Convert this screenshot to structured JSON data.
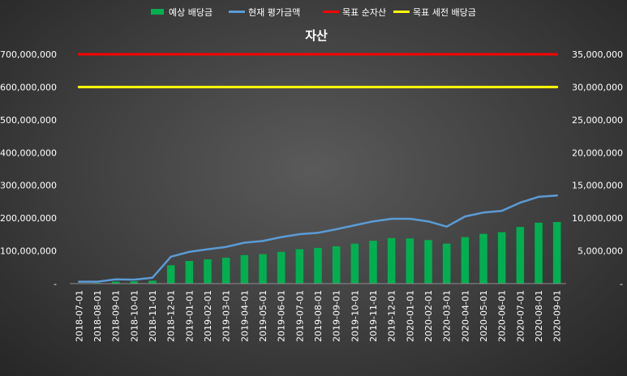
{
  "chart_data": {
    "type": "bar",
    "title": "자산",
    "categories": [
      "2018-07-01",
      "2018-08-01",
      "2018-09-01",
      "2018-10-01",
      "2018-11-01",
      "2018-12-01",
      "2019-01-01",
      "2019-02-01",
      "2019-03-01",
      "2019-04-01",
      "2019-05-01",
      "2019-06-01",
      "2019-07-01",
      "2019-08-01",
      "2019-09-01",
      "2019-10-01",
      "2019-11-01",
      "2019-12-01",
      "2020-01-01",
      "2020-02-01",
      "2020-03-01",
      "2020-04-01",
      "2020-05-01",
      "2020-06-01",
      "2020-07-01",
      "2020-08-01",
      "2020-09-01"
    ],
    "left_axis": {
      "ylim": [
        0,
        700000000
      ],
      "ticks": [
        0,
        100000000,
        200000000,
        300000000,
        400000000,
        500000000,
        600000000,
        700000000
      ],
      "tick_labels": [
        "-",
        "100,000,000",
        "200,000,000",
        "300,000,000",
        "400,000,000",
        "500,000,000",
        "600,000,000",
        "700,000,000"
      ]
    },
    "right_axis": {
      "ylim": [
        0,
        35000000
      ],
      "ticks": [
        0,
        5000000,
        10000000,
        15000000,
        20000000,
        25000000,
        30000000,
        35000000
      ],
      "tick_labels": [
        "-",
        "5,000,000",
        "10,000,000",
        "15,000,000",
        "20,000,000",
        "25,000,000",
        "30,000,000",
        "35,000,000"
      ]
    },
    "series": [
      {
        "name": "예상 배당금",
        "type": "bar",
        "axis": "right",
        "color": "#00b050",
        "values": [
          50000,
          100000,
          300000,
          350000,
          450000,
          2800000,
          3450000,
          3700000,
          3950000,
          4350000,
          4500000,
          4850000,
          5250000,
          5450000,
          5700000,
          6100000,
          6550000,
          6950000,
          6900000,
          6650000,
          6100000,
          7100000,
          7600000,
          7850000,
          8650000,
          9300000,
          9400000
        ]
      },
      {
        "name": "현재 평가금액",
        "type": "line",
        "axis": "left",
        "color": "#5b9bd5",
        "values": [
          6000000,
          6000000,
          13000000,
          12000000,
          18000000,
          82000000,
          97000000,
          105000000,
          112000000,
          125000000,
          130000000,
          142000000,
          151000000,
          155000000,
          166000000,
          178000000,
          190000000,
          198000000,
          198000000,
          190000000,
          174000000,
          205000000,
          217000000,
          222000000,
          247000000,
          265000000,
          269000000
        ]
      },
      {
        "name": "목표 순자산",
        "type": "line",
        "axis": "left",
        "color": "#ff0000",
        "values": [
          700000000,
          700000000,
          700000000,
          700000000,
          700000000,
          700000000,
          700000000,
          700000000,
          700000000,
          700000000,
          700000000,
          700000000,
          700000000,
          700000000,
          700000000,
          700000000,
          700000000,
          700000000,
          700000000,
          700000000,
          700000000,
          700000000,
          700000000,
          700000000,
          700000000,
          700000000,
          700000000
        ]
      },
      {
        "name": "목표 세전 배당금",
        "type": "line",
        "axis": "right",
        "color": "#ffff00",
        "values": [
          30000000,
          30000000,
          30000000,
          30000000,
          30000000,
          30000000,
          30000000,
          30000000,
          30000000,
          30000000,
          30000000,
          30000000,
          30000000,
          30000000,
          30000000,
          30000000,
          30000000,
          30000000,
          30000000,
          30000000,
          30000000,
          30000000,
          30000000,
          30000000,
          30000000,
          30000000,
          30000000
        ]
      }
    ],
    "legend_position": "top-center",
    "grid": false
  }
}
